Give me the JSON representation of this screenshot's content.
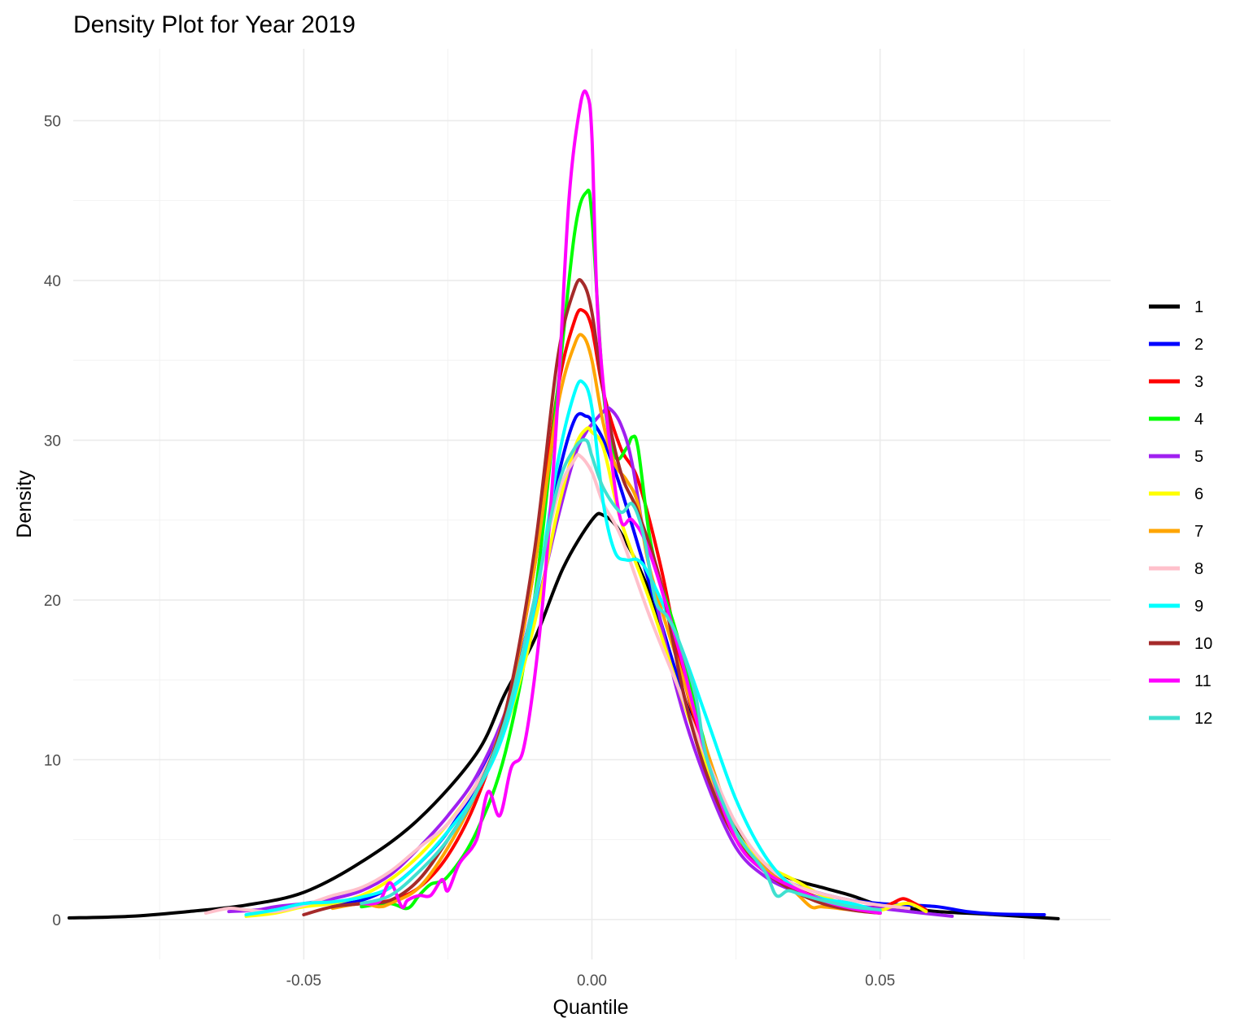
{
  "chart_data": {
    "type": "line",
    "title": "Density Plot for Year 2019",
    "xlabel": "Quantile",
    "ylabel": "Density",
    "xlim": [
      -0.09,
      0.09
    ],
    "ylim": [
      -2.5,
      54.5
    ],
    "x_ticks": [
      -0.05,
      0.0,
      0.05
    ],
    "x_tick_labels": [
      "-0.05",
      "0.00",
      "0.05"
    ],
    "y_ticks": [
      0,
      10,
      20,
      30,
      40,
      50
    ],
    "y_tick_labels": [
      "0",
      "10",
      "20",
      "30",
      "40",
      "50"
    ],
    "grid": true,
    "legend_position": "right",
    "series": [
      {
        "name": "1",
        "color": "#000000",
        "x": [
          -0.0907,
          -0.08,
          -0.07,
          -0.06,
          -0.05,
          -0.04,
          -0.03,
          -0.02,
          -0.015,
          -0.01,
          -0.005,
          0.0,
          0.002,
          0.005,
          0.01,
          0.015,
          0.02,
          0.025,
          0.03,
          0.035,
          0.04,
          0.045,
          0.05,
          0.055,
          0.06,
          0.07,
          0.0809
        ],
        "y": [
          0.1,
          0.2,
          0.5,
          0.9,
          1.7,
          3.6,
          6.3,
          10.4,
          14.2,
          17.5,
          22.0,
          25.0,
          25.3,
          24.2,
          20.5,
          15.0,
          9.8,
          5.7,
          3.4,
          2.5,
          2.0,
          1.5,
          0.9,
          0.7,
          0.5,
          0.3,
          0.05
        ]
      },
      {
        "name": "2",
        "color": "#0000ff",
        "x": [
          -0.045,
          -0.04,
          -0.035,
          -0.03,
          -0.025,
          -0.02,
          -0.015,
          -0.01,
          -0.006,
          -0.003,
          -0.001,
          0.0,
          0.002,
          0.005,
          0.01,
          0.015,
          0.02,
          0.025,
          0.03,
          0.035,
          0.04,
          0.045,
          0.05,
          0.055,
          0.06,
          0.065,
          0.07,
          0.0785
        ],
        "y": [
          0.9,
          1.2,
          2.0,
          3.5,
          5.5,
          8.5,
          13.0,
          20.0,
          27.5,
          31.3,
          31.5,
          31.2,
          30.0,
          27.0,
          21.0,
          15.0,
          9.5,
          5.5,
          3.3,
          2.2,
          1.6,
          1.2,
          1.0,
          0.9,
          0.8,
          0.5,
          0.35,
          0.3
        ]
      },
      {
        "name": "3",
        "color": "#ff0000",
        "x": [
          -0.045,
          -0.04,
          -0.035,
          -0.03,
          -0.025,
          -0.02,
          -0.015,
          -0.01,
          -0.006,
          -0.003,
          -0.0015,
          0.0,
          0.002,
          0.005,
          0.008,
          0.012,
          0.016,
          0.02,
          0.025,
          0.03,
          0.035,
          0.04,
          0.045,
          0.05,
          0.052,
          0.054,
          0.056,
          0.058
        ],
        "y": [
          0.8,
          1.0,
          1.2,
          2.0,
          4.0,
          7.5,
          13.0,
          22.0,
          33.0,
          37.5,
          38.1,
          37.0,
          33.0,
          29.5,
          27.5,
          22.0,
          15.0,
          10.0,
          5.5,
          3.2,
          2.0,
          1.3,
          0.8,
          0.8,
          1.0,
          1.3,
          1.0,
          0.6
        ]
      },
      {
        "name": "4",
        "color": "#00ff00",
        "x": [
          -0.04,
          -0.035,
          -0.032,
          -0.03,
          -0.028,
          -0.025,
          -0.02,
          -0.015,
          -0.01,
          -0.006,
          -0.003,
          -0.001,
          0.0,
          0.002,
          0.004,
          0.006,
          0.007,
          0.008,
          0.01,
          0.012,
          0.015,
          0.02,
          0.025,
          0.03,
          0.035,
          0.04,
          0.045,
          0.05
        ],
        "y": [
          0.8,
          1.0,
          0.7,
          1.5,
          2.2,
          2.7,
          5.5,
          10.5,
          20.0,
          33.0,
          43.0,
          45.5,
          44.0,
          33.0,
          29.0,
          29.5,
          30.2,
          29.5,
          24.0,
          21.0,
          17.5,
          10.5,
          5.5,
          3.0,
          1.8,
          1.2,
          0.8,
          0.4
        ]
      },
      {
        "name": "5",
        "color": "#a020f0",
        "x": [
          -0.063,
          -0.058,
          -0.055,
          -0.05,
          -0.045,
          -0.04,
          -0.035,
          -0.03,
          -0.025,
          -0.02,
          -0.015,
          -0.01,
          -0.006,
          -0.003,
          -0.001,
          0.0,
          0.002,
          0.003,
          0.005,
          0.007,
          0.01,
          0.015,
          0.02,
          0.025,
          0.03,
          0.035,
          0.04,
          0.045,
          0.05,
          0.055,
          0.06,
          0.0625
        ],
        "y": [
          0.5,
          0.6,
          0.8,
          1.0,
          1.3,
          1.8,
          2.8,
          4.5,
          6.5,
          9.0,
          13.0,
          19.0,
          25.0,
          29.0,
          30.5,
          31.0,
          31.8,
          32.0,
          31.0,
          28.5,
          22.0,
          14.0,
          8.5,
          4.5,
          2.7,
          1.8,
          1.3,
          0.9,
          0.7,
          0.5,
          0.3,
          0.2
        ]
      },
      {
        "name": "6",
        "color": "#ffff00",
        "x": [
          -0.06,
          -0.055,
          -0.05,
          -0.045,
          -0.04,
          -0.035,
          -0.03,
          -0.025,
          -0.02,
          -0.015,
          -0.01,
          -0.006,
          -0.003,
          -0.001,
          0.0,
          0.002,
          0.005,
          0.01,
          0.015,
          0.02,
          0.025,
          0.03,
          0.035,
          0.04,
          0.045,
          0.05,
          0.052,
          0.055,
          0.058
        ],
        "y": [
          0.2,
          0.4,
          0.8,
          1.0,
          1.5,
          2.5,
          4.0,
          6.0,
          8.5,
          12.0,
          18.5,
          25.5,
          29.5,
          30.7,
          30.5,
          29.5,
          25.0,
          20.0,
          14.5,
          9.5,
          5.5,
          3.5,
          2.5,
          1.5,
          0.8,
          0.6,
          0.8,
          1.0,
          0.5
        ]
      },
      {
        "name": "7",
        "color": "#ffa500",
        "x": [
          -0.045,
          -0.04,
          -0.037,
          -0.035,
          -0.03,
          -0.025,
          -0.02,
          -0.015,
          -0.01,
          -0.006,
          -0.003,
          -0.0015,
          0.0,
          0.002,
          0.004,
          0.006,
          0.008,
          0.01,
          0.015,
          0.02,
          0.025,
          0.03,
          0.035,
          0.038,
          0.04,
          0.045,
          0.05
        ],
        "y": [
          0.7,
          1.0,
          0.8,
          1.0,
          2.0,
          4.5,
          8.0,
          13.0,
          22.0,
          32.0,
          36.0,
          36.5,
          35.0,
          31.0,
          28.5,
          27.5,
          26.0,
          22.0,
          16.0,
          10.5,
          5.5,
          3.2,
          1.8,
          0.8,
          0.8,
          0.6,
          0.4
        ]
      },
      {
        "name": "8",
        "color": "#ffc0cb",
        "x": [
          -0.067,
          -0.063,
          -0.06,
          -0.055,
          -0.05,
          -0.045,
          -0.04,
          -0.035,
          -0.03,
          -0.025,
          -0.02,
          -0.015,
          -0.01,
          -0.006,
          -0.003,
          -0.002,
          0.0,
          0.002,
          0.005,
          0.01,
          0.015,
          0.02,
          0.025,
          0.03,
          0.035,
          0.04,
          0.045,
          0.05,
          0.055
        ],
        "y": [
          0.4,
          0.7,
          0.6,
          0.5,
          0.9,
          1.5,
          2.0,
          3.0,
          4.5,
          6.0,
          8.5,
          12.5,
          20.0,
          26.5,
          28.8,
          29.0,
          28.0,
          26.0,
          24.0,
          19.0,
          14.5,
          10.0,
          6.0,
          3.5,
          2.2,
          1.6,
          1.2,
          0.9,
          0.7
        ]
      },
      {
        "name": "9",
        "color": "#00ffff",
        "x": [
          -0.06,
          -0.055,
          -0.05,
          -0.045,
          -0.04,
          -0.035,
          -0.03,
          -0.025,
          -0.02,
          -0.015,
          -0.01,
          -0.006,
          -0.003,
          -0.0015,
          0.0,
          0.002,
          0.004,
          0.006,
          0.008,
          0.01,
          0.015,
          0.02,
          0.025,
          0.03,
          0.035,
          0.04,
          0.045,
          0.05
        ],
        "y": [
          0.3,
          0.6,
          1.0,
          1.1,
          1.4,
          2.0,
          3.5,
          5.5,
          8.0,
          12.0,
          19.5,
          28.5,
          33.0,
          33.6,
          32.0,
          26.0,
          23.0,
          22.5,
          22.5,
          21.5,
          17.5,
          12.5,
          7.5,
          4.0,
          2.0,
          1.3,
          1.0,
          0.5
        ]
      },
      {
        "name": "10",
        "color": "#a52a2a",
        "x": [
          -0.05,
          -0.045,
          -0.04,
          -0.035,
          -0.03,
          -0.025,
          -0.02,
          -0.015,
          -0.01,
          -0.006,
          -0.003,
          -0.0015,
          0.0,
          0.002,
          0.005,
          0.008,
          0.012,
          0.016,
          0.02,
          0.025,
          0.03,
          0.035,
          0.04,
          0.045,
          0.05
        ],
        "y": [
          0.3,
          0.8,
          1.0,
          1.2,
          2.5,
          5.0,
          8.0,
          13.0,
          23.0,
          35.0,
          39.5,
          39.8,
          38.0,
          33.0,
          28.0,
          25.5,
          21.0,
          14.0,
          9.0,
          5.0,
          3.0,
          1.8,
          1.0,
          0.6,
          0.4
        ]
      },
      {
        "name": "11",
        "color": "#ff00ff",
        "x": [
          -0.04,
          -0.037,
          -0.035,
          -0.033,
          -0.032,
          -0.03,
          -0.028,
          -0.026,
          -0.025,
          -0.023,
          -0.02,
          -0.018,
          -0.016,
          -0.014,
          -0.012,
          -0.01,
          -0.008,
          -0.006,
          -0.004,
          -0.002,
          -0.0008,
          0.0,
          0.001,
          0.003,
          0.005,
          0.007,
          0.01,
          0.015,
          0.02,
          0.025,
          0.03,
          0.035,
          0.04,
          0.045,
          0.05
        ],
        "y": [
          1.0,
          1.1,
          2.3,
          0.8,
          1.2,
          1.5,
          1.5,
          2.5,
          1.8,
          3.5,
          5.0,
          8.0,
          6.5,
          9.5,
          10.5,
          15.0,
          22.0,
          32.0,
          45.0,
          51.0,
          51.6,
          49.0,
          38.0,
          30.0,
          25.0,
          25.0,
          23.0,
          17.0,
          10.0,
          5.0,
          3.0,
          2.0,
          1.2,
          0.7,
          0.4
        ]
      },
      {
        "name": "12",
        "color": "#40e0d0",
        "x": [
          -0.04,
          -0.035,
          -0.03,
          -0.025,
          -0.02,
          -0.015,
          -0.01,
          -0.006,
          -0.003,
          -0.001,
          0.0,
          0.002,
          0.005,
          0.007,
          0.009,
          0.011,
          0.013,
          0.015,
          0.018,
          0.02,
          0.025,
          0.03,
          0.032,
          0.034,
          0.036,
          0.04,
          0.045,
          0.05
        ],
        "y": [
          1.0,
          1.5,
          3.0,
          5.0,
          8.0,
          12.5,
          20.0,
          27.0,
          29.5,
          30.0,
          29.0,
          27.0,
          25.5,
          26.0,
          24.0,
          20.0,
          19.0,
          17.5,
          14.0,
          10.0,
          5.5,
          3.0,
          1.5,
          1.8,
          1.6,
          1.2,
          0.8,
          0.6
        ]
      }
    ]
  }
}
